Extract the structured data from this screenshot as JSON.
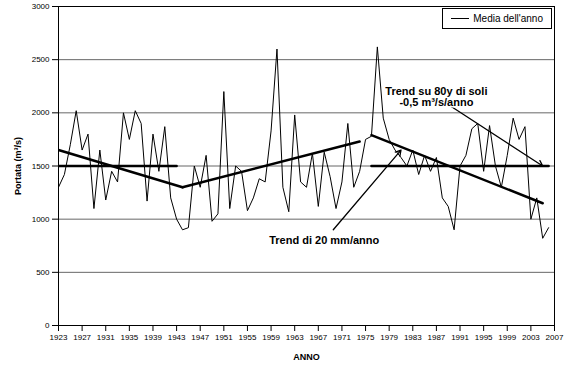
{
  "chart_data": {
    "type": "line",
    "x_label": "ANNO",
    "y_label": "Portata (m³/s)",
    "x": [
      1923,
      1924,
      1925,
      1926,
      1927,
      1928,
      1929,
      1930,
      1931,
      1932,
      1933,
      1934,
      1935,
      1936,
      1937,
      1938,
      1939,
      1940,
      1941,
      1942,
      1943,
      1944,
      1945,
      1946,
      1947,
      1948,
      1949,
      1950,
      1951,
      1952,
      1953,
      1954,
      1955,
      1956,
      1957,
      1958,
      1959,
      1960,
      1961,
      1962,
      1963,
      1964,
      1965,
      1966,
      1967,
      1968,
      1969,
      1970,
      1971,
      1972,
      1973,
      1974,
      1975,
      1976,
      1977,
      1978,
      1979,
      1980,
      1981,
      1982,
      1983,
      1984,
      1985,
      1986,
      1987,
      1988,
      1989,
      1990,
      1991,
      1992,
      1993,
      1994,
      1995,
      1996,
      1997,
      1998,
      1999,
      2000,
      2001,
      2002,
      2003,
      2004,
      2005,
      2006
    ],
    "series": [
      {
        "name": "Media dell'anno",
        "color": "#000000",
        "values": [
          1300,
          1420,
          1700,
          2020,
          1650,
          1800,
          1100,
          1650,
          1180,
          1450,
          1350,
          2000,
          1750,
          2020,
          1900,
          1170,
          1800,
          1450,
          1870,
          1200,
          1000,
          900,
          920,
          1500,
          1300,
          1600,
          980,
          1050,
          2200,
          1100,
          1500,
          1450,
          1080,
          1200,
          1380,
          1350,
          1830,
          2600,
          1300,
          1070,
          1980,
          1350,
          1300,
          1620,
          1120,
          1630,
          1400,
          1100,
          1350,
          1900,
          1300,
          1450,
          1750,
          1780,
          2620,
          1950,
          1750,
          1650,
          1580,
          1500,
          1650,
          1420,
          1600,
          1450,
          1580,
          1200,
          1120,
          900,
          1500,
          1600,
          1850,
          1900,
          1450,
          1880,
          1500,
          1300,
          1600,
          1950,
          1750,
          1870,
          1000,
          1200,
          820,
          920
        ]
      }
    ],
    "trend_lines": [
      {
        "x": [
          1923,
          1944
        ],
        "values": [
          1650,
          1300
        ]
      },
      {
        "x": [
          1944,
          1974
        ],
        "values": [
          1300,
          1730
        ]
      },
      {
        "x": [
          1976,
          2005
        ],
        "values": [
          1790,
          1150
        ]
      },
      {
        "x": [
          1923,
          1943
        ],
        "values": [
          1500,
          1500
        ]
      },
      {
        "x": [
          1976,
          2006
        ],
        "values": [
          1500,
          1500
        ]
      }
    ],
    "annotations": [
      {
        "text": "Trend su 80y di soli\n-0,5 m³/s/anno",
        "x": 1987,
        "y": 2150,
        "points_to": [
          2005,
          1500
        ]
      },
      {
        "text": "Trend di 20 mm/anno",
        "x": 1968,
        "y": 800,
        "points_to": [
          1981,
          1650
        ]
      }
    ],
    "xlim": [
      1923,
      2007
    ],
    "ylim": [
      0,
      3000
    ],
    "xticks": [
      1923,
      1927,
      1931,
      1935,
      1939,
      1943,
      1947,
      1951,
      1955,
      1959,
      1963,
      1967,
      1971,
      1975,
      1979,
      1983,
      1987,
      1991,
      1995,
      1999,
      2003,
      2007
    ],
    "yticks": [
      0,
      500,
      1000,
      1500,
      2000,
      2500,
      3000
    ],
    "grid": true,
    "legend": "top-right"
  }
}
